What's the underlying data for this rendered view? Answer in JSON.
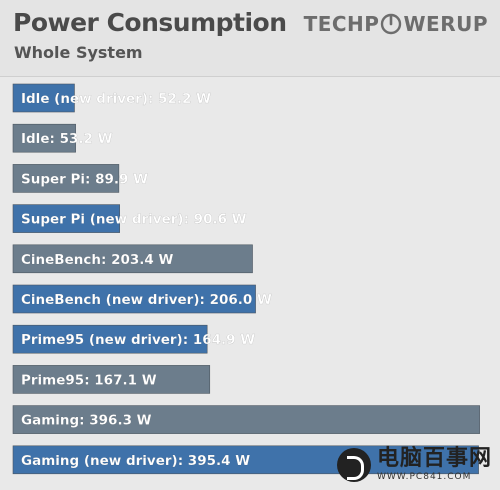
{
  "header": {
    "title": "Power Consumption",
    "subtitle": "Whole System",
    "logo_left": "TECHP",
    "logo_right": "WERUP",
    "logo_icon": "power-icon"
  },
  "watermark": {
    "text": "电脑百事网",
    "url": "WWW.PC841.COM",
    "icon": "pc841-logo-icon"
  },
  "chart_data": {
    "type": "bar",
    "orientation": "horizontal",
    "title": "Power Consumption",
    "subtitle": "Whole System",
    "unit": "W",
    "xlim": [
      0,
      400
    ],
    "grid": false,
    "categories": [
      "Idle (new driver)",
      "Idle",
      "Super Pi",
      "Super Pi (new driver)",
      "CineBench",
      "CineBench (new driver)",
      "Prime95 (new driver)",
      "Prime95",
      "Gaming",
      "Gaming (new driver)"
    ],
    "values": [
      52.2,
      53.2,
      89.9,
      90.6,
      203.4,
      206.0,
      164.9,
      167.1,
      396.3,
      395.4
    ],
    "labels": [
      "Idle (new driver): 52.2 W",
      "Idle: 53.2 W",
      "Super Pi: 89.9 W",
      "Super Pi (new driver): 90.6 W",
      "CineBench: 203.4 W",
      "CineBench (new driver): 206.0 W",
      "Prime95 (new driver): 164.9 W",
      "Prime95: 167.1 W",
      "Gaming: 396.3 W",
      "Gaming (new driver): 395.4 W"
    ],
    "highlight": [
      true,
      false,
      false,
      true,
      false,
      true,
      true,
      false,
      false,
      true
    ],
    "colors": {
      "highlight": "#3f72aa",
      "normal": "#6c7d8c"
    }
  }
}
